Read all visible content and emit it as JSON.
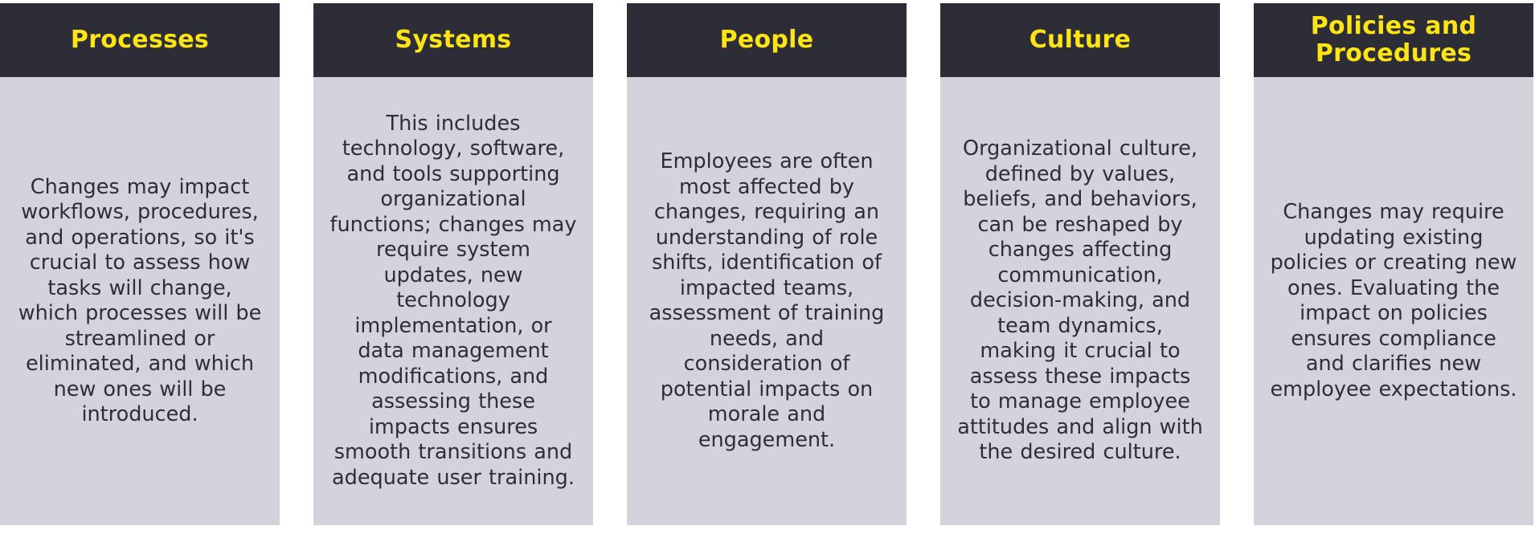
{
  "colors": {
    "header_bg": "#2d2d37",
    "header_text": "#ffe414",
    "body_bg": "#d3d3db",
    "body_text": "#2e2e38"
  },
  "cards": [
    {
      "title": "Processes",
      "text": "Changes may impact workflows, procedures, and operations, so it's crucial to assess how tasks will change, which processes will be streamlined or eliminated, and which new ones will be introduced."
    },
    {
      "title": "Systems",
      "text": "This includes technology, software, and tools supporting organizational functions; changes may require system updates, new technology implementation, or data management modifications, and assessing these impacts ensures smooth transitions and adequate user training."
    },
    {
      "title": "People",
      "text": "Employees are often most affected by changes, requiring an understanding of role shifts, identification of impacted teams, assessment of training needs, and consideration of potential impacts on morale and engagement."
    },
    {
      "title": "Culture",
      "text": "Organizational culture, defined by values, beliefs, and behaviors, can be reshaped by changes affecting communication, decision-making, and team dynamics, making it crucial to assess these impacts to manage employee attitudes and align with the desired culture."
    },
    {
      "title": "Policies and Procedures",
      "text": "Changes may require updating existing policies or creating new ones. Evaluating the impact on policies ensures compliance and clarifies new employee expectations."
    }
  ]
}
